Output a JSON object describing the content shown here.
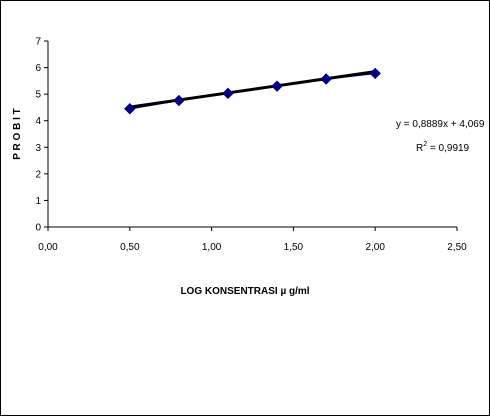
{
  "chart_data": {
    "type": "scatter",
    "title": "",
    "xlabel": "LOG KONSENTRASI µ g/ml",
    "ylabel": "P R O B I T",
    "xlim": [
      0,
      2.5
    ],
    "ylim": [
      0,
      7
    ],
    "xticks": [
      "0,00",
      "0,50",
      "1,00",
      "1,50",
      "2,00",
      "2,50"
    ],
    "yticks": [
      "0",
      "1",
      "2",
      "3",
      "4",
      "5",
      "6",
      "7"
    ],
    "grid": false,
    "legend": "none",
    "series": [
      {
        "x": [
          0.5,
          0.8,
          1.1,
          1.4,
          1.7,
          2.0
        ],
        "y": [
          4.45,
          4.76,
          5.03,
          5.3,
          5.57,
          5.78
        ],
        "marker": "diamond",
        "color": "#000080"
      }
    ],
    "trendline": {
      "slope": 0.8889,
      "intercept": 4.069,
      "color": "#000000"
    },
    "annotations": {
      "equation": "y = 0,8889x + 4,069",
      "r2_label": "R",
      "r2_sup": "2",
      "r2_value": " = 0,9919"
    }
  }
}
